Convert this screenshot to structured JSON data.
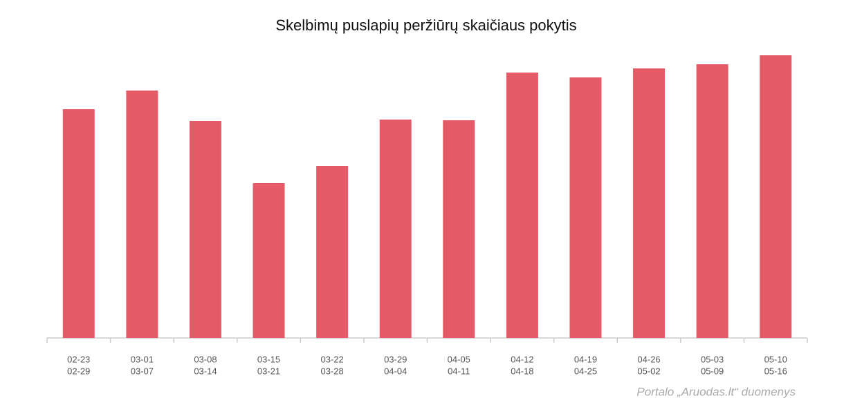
{
  "chart_data": {
    "type": "bar",
    "title": "Skelbimų puslapių peržiūrų skaičiaus pokytis",
    "source": "Portalo „Aruodas.lt“ duomenys",
    "categories": [
      [
        "02-23",
        "02-29"
      ],
      [
        "03-01",
        "03-07"
      ],
      [
        "03-08",
        "03-14"
      ],
      [
        "03-15",
        "03-21"
      ],
      [
        "03-22",
        "03-28"
      ],
      [
        "03-29",
        "04-04"
      ],
      [
        "04-05",
        "04-11"
      ],
      [
        "04-12",
        "04-18"
      ],
      [
        "04-19",
        "04-25"
      ],
      [
        "04-26",
        "05-02"
      ],
      [
        "05-03",
        "05-09"
      ],
      [
        "05-10",
        "05-16"
      ]
    ],
    "values": [
      331,
      358,
      314,
      224,
      249,
      316,
      315,
      384,
      377,
      390,
      396,
      409
    ],
    "color": "#e45a66",
    "ylim": [
      0,
      409
    ]
  }
}
